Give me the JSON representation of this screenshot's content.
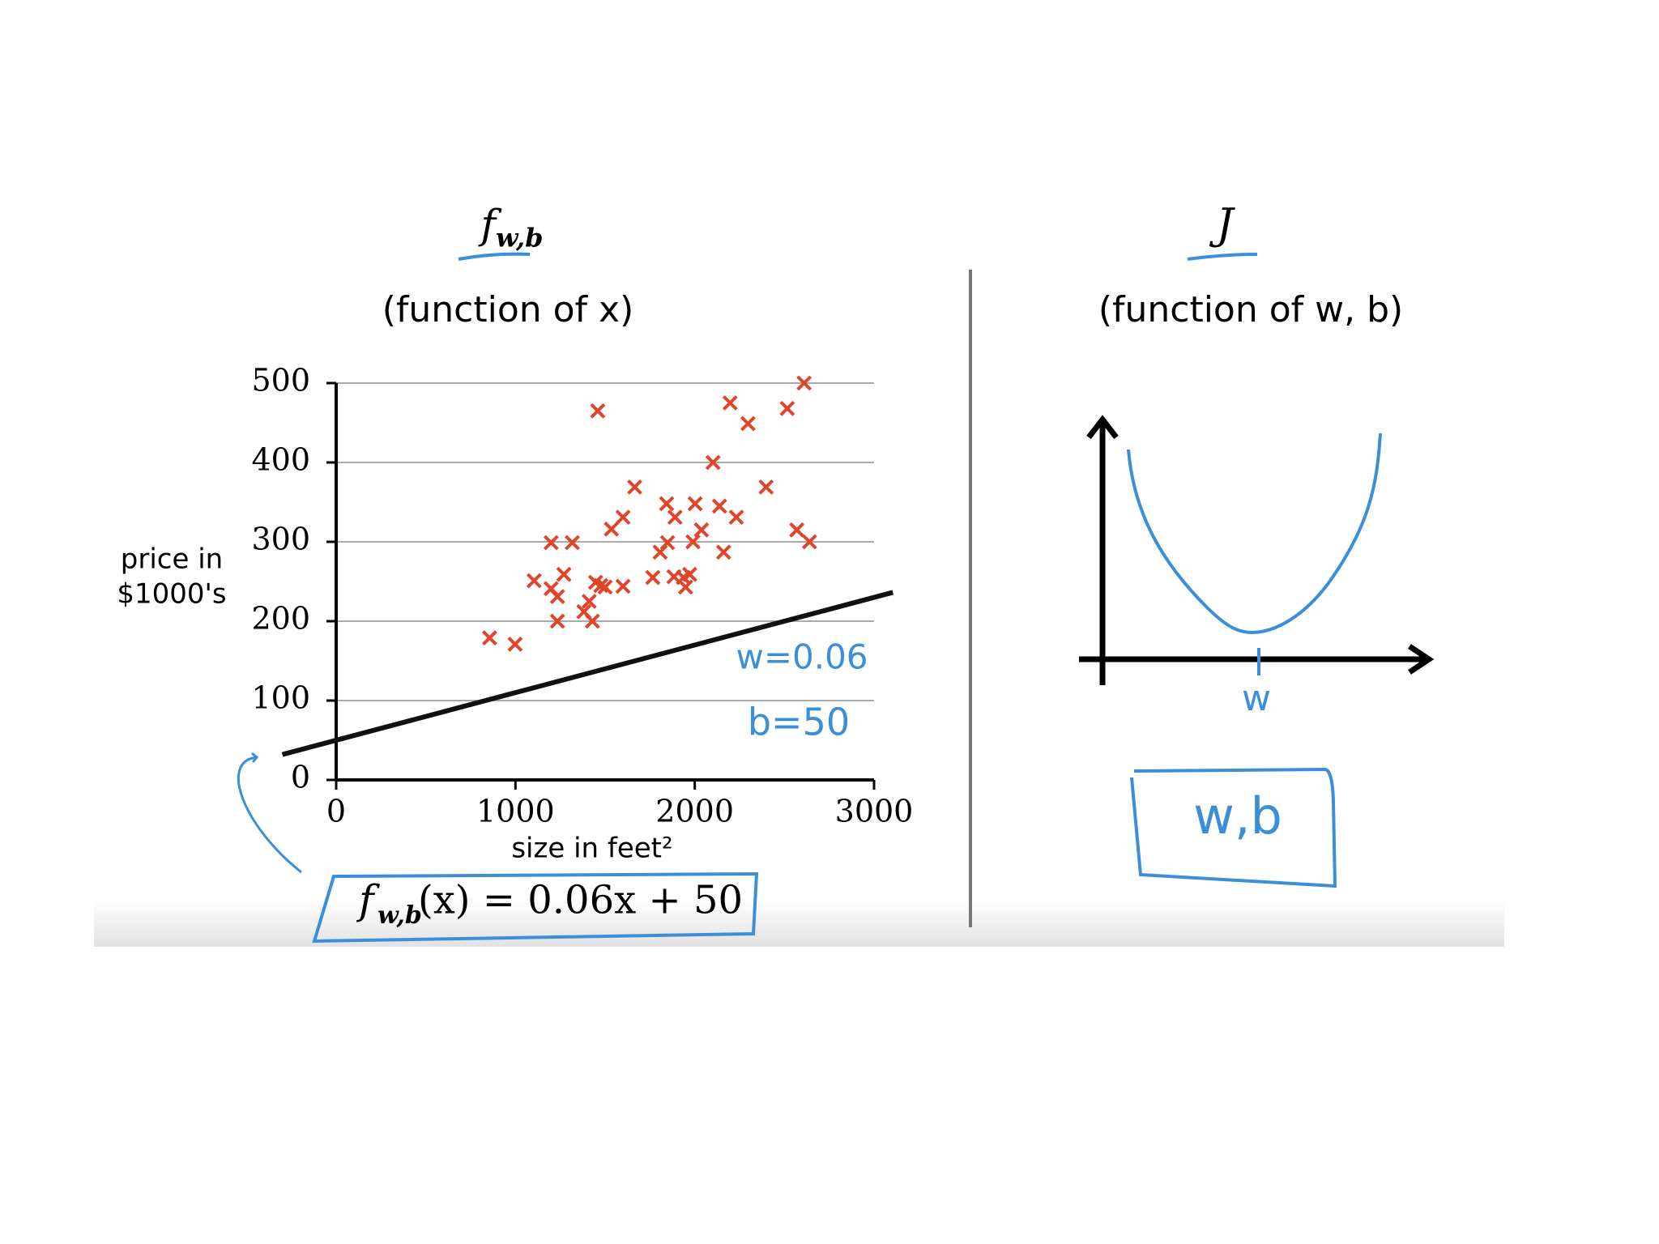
{
  "chart_data": {
    "type": "scatter",
    "title": {
      "function": "f",
      "subscript": "w,b"
    },
    "subtitle": "(function of x)",
    "x_label": "size in feet²",
    "y_label": [
      "price in",
      "$1000's"
    ],
    "x": [
      856,
      998,
      1459,
      1104,
      1199,
      1317,
      1199,
      1234,
      1270,
      1234,
      1382,
      1411,
      1429,
      1447,
      1476,
      1500,
      1600,
      1535,
      1600,
      1665,
      1766,
      1807,
      1848,
      1843,
      1890,
      1884,
      1937,
      1949,
      1972,
      1990,
      2002,
      2037,
      2102,
      2138,
      2161,
      2197,
      2232,
      2297,
      2398,
      2516,
      2610,
      2569,
      2640
    ],
    "values": [
      179,
      171,
      465,
      251,
      299,
      299,
      241,
      231,
      259,
      200,
      212,
      225,
      200,
      249,
      245,
      243,
      244,
      316,
      331,
      369,
      255,
      287,
      299,
      348,
      331,
      256,
      255,
      243,
      259,
      300,
      348,
      315,
      400,
      345,
      287,
      475,
      331,
      449,
      369,
      468,
      500,
      315,
      300
    ],
    "color": "#e0452b",
    "xlim": [
      0,
      3000
    ],
    "ylim": [
      0,
      500
    ],
    "xticks": [
      0,
      1000,
      2000,
      3000
    ],
    "yticks": [
      0,
      100,
      200,
      300,
      400,
      500
    ],
    "grid": true,
    "fit_line": {
      "w": 0.06,
      "b": 50,
      "color": "#111111"
    },
    "annotations": [
      "w=0.06",
      "b=50"
    ],
    "equation": {
      "function": "f",
      "subscript": "w,b",
      "body": "(x) = 0.06x + 50"
    }
  },
  "cost_panel": {
    "title": "J",
    "subtitle": "(function of w, b)",
    "axis_label": "w",
    "box_label": "w,b"
  }
}
